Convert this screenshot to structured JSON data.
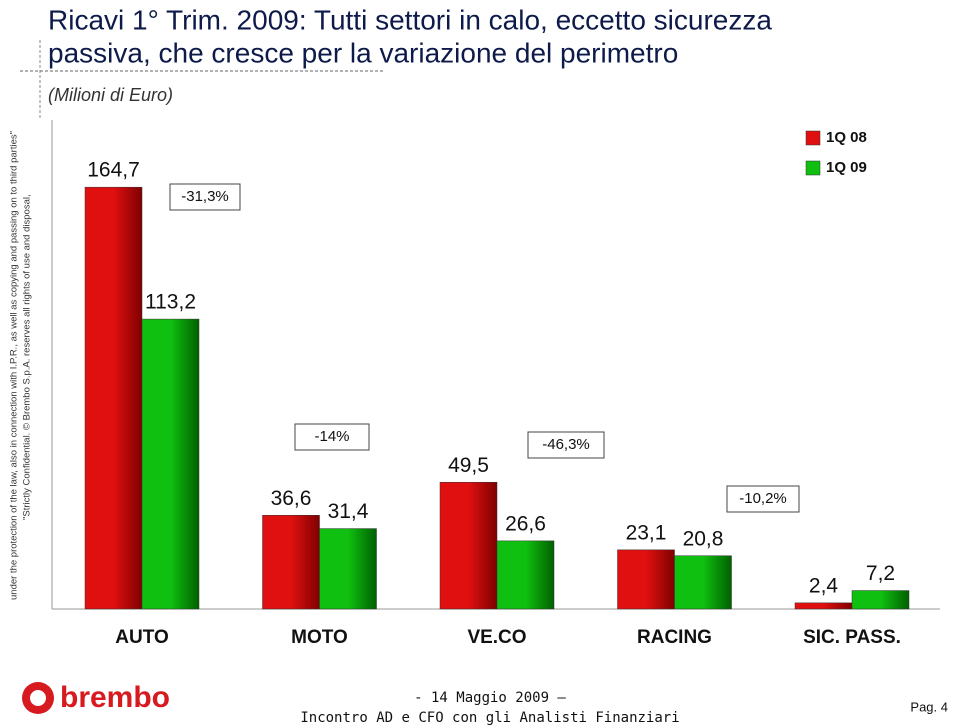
{
  "chart_data": {
    "type": "bar",
    "title": [
      "Ricavi 1° Trim. 2009: Tutti settori in calo, eccetto sicurezza",
      "passiva, che cresce per la variazione del perimetro"
    ],
    "subtitle": "(Milioni di Euro)",
    "categories": [
      "AUTO",
      "MOTO",
      "VE.CO",
      "RACING",
      "SIC. PASS."
    ],
    "series": [
      {
        "name": "1Q 08",
        "color": "#e01010",
        "values": [
          164.7,
          36.6,
          49.5,
          23.1,
          2.4
        ],
        "value_labels": [
          "164,7",
          "36,6",
          "49,5",
          "23,1",
          "2,4"
        ]
      },
      {
        "name": "1Q 09",
        "color": "#10c010",
        "values": [
          113.2,
          31.4,
          26.6,
          20.8,
          7.2
        ],
        "value_labels": [
          "113,2",
          "31,4",
          "26,6",
          "20,8",
          "7,2"
        ]
      }
    ],
    "annotations": [
      "-31,3%",
      "-14%",
      "-46,3%",
      "-10,2%"
    ],
    "ylim": [
      0,
      180
    ],
    "legend": "top-right"
  },
  "side_note": [
    "\"Strictly Confidential. © Brembo S.p.A. reserves all rights of use and disposal,",
    "under the protection of the law, also in connection with I.P.R., as well as copying and passing on to third parties\""
  ],
  "footer": {
    "logo": "brembo",
    "date": "- 14 Maggio 2009 –",
    "event": "Incontro AD e CFO con gli Analisti Finanziari",
    "page": "Pag. 4"
  }
}
